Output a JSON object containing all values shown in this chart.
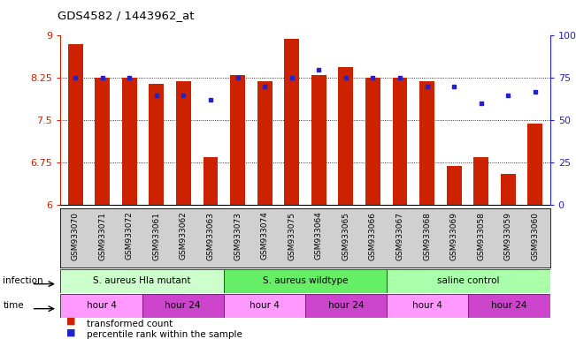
{
  "title": "GDS4582 / 1443962_at",
  "samples": [
    "GSM933070",
    "GSM933071",
    "GSM933072",
    "GSM933061",
    "GSM933062",
    "GSM933063",
    "GSM933073",
    "GSM933074",
    "GSM933075",
    "GSM933064",
    "GSM933065",
    "GSM933066",
    "GSM933067",
    "GSM933068",
    "GSM933069",
    "GSM933058",
    "GSM933059",
    "GSM933060"
  ],
  "bar_values": [
    8.85,
    8.25,
    8.25,
    8.15,
    8.2,
    6.85,
    8.3,
    8.2,
    8.95,
    8.3,
    8.45,
    8.25,
    8.25,
    8.2,
    6.7,
    6.85,
    6.55,
    7.45
  ],
  "dot_values": [
    75,
    75,
    75,
    65,
    65,
    62,
    75,
    70,
    75,
    80,
    75,
    75,
    75,
    70,
    70,
    60,
    65,
    67
  ],
  "ylim_left": [
    6,
    9
  ],
  "ylim_right": [
    0,
    100
  ],
  "yticks_left": [
    6,
    6.75,
    7.5,
    8.25,
    9
  ],
  "yticks_right": [
    0,
    25,
    50,
    75,
    100
  ],
  "ytick_labels_left": [
    "6",
    "6.75",
    "7.5",
    "8.25",
    "9"
  ],
  "ytick_labels_right": [
    "0",
    "25",
    "50",
    "75",
    "100%"
  ],
  "bar_color": "#cc2200",
  "dot_color": "#2222cc",
  "infection_groups": [
    {
      "label": "S. aureus Hla mutant",
      "start": 0,
      "end": 6,
      "color": "#ccffcc"
    },
    {
      "label": "S. aureus wildtype",
      "start": 6,
      "end": 12,
      "color": "#66ee66"
    },
    {
      "label": "saline control",
      "start": 12,
      "end": 18,
      "color": "#aaffaa"
    }
  ],
  "time_groups": [
    {
      "label": "hour 4",
      "start": 0,
      "end": 3,
      "color": "#ff99ff"
    },
    {
      "label": "hour 24",
      "start": 3,
      "end": 6,
      "color": "#cc44cc"
    },
    {
      "label": "hour 4",
      "start": 6,
      "end": 9,
      "color": "#ff99ff"
    },
    {
      "label": "hour 24",
      "start": 9,
      "end": 12,
      "color": "#cc44cc"
    },
    {
      "label": "hour 4",
      "start": 12,
      "end": 15,
      "color": "#ff99ff"
    },
    {
      "label": "hour 24",
      "start": 15,
      "end": 18,
      "color": "#cc44cc"
    }
  ],
  "legend_items": [
    {
      "label": "transformed count",
      "color": "#cc2200"
    },
    {
      "label": "percentile rank within the sample",
      "color": "#2222cc"
    }
  ],
  "bg_color": "#ffffff",
  "axis_color_left": "#cc2200",
  "axis_color_right": "#2222cc",
  "sample_bg": "#d0d0d0",
  "fig_width": 6.51,
  "fig_height": 3.84,
  "dpi": 100
}
